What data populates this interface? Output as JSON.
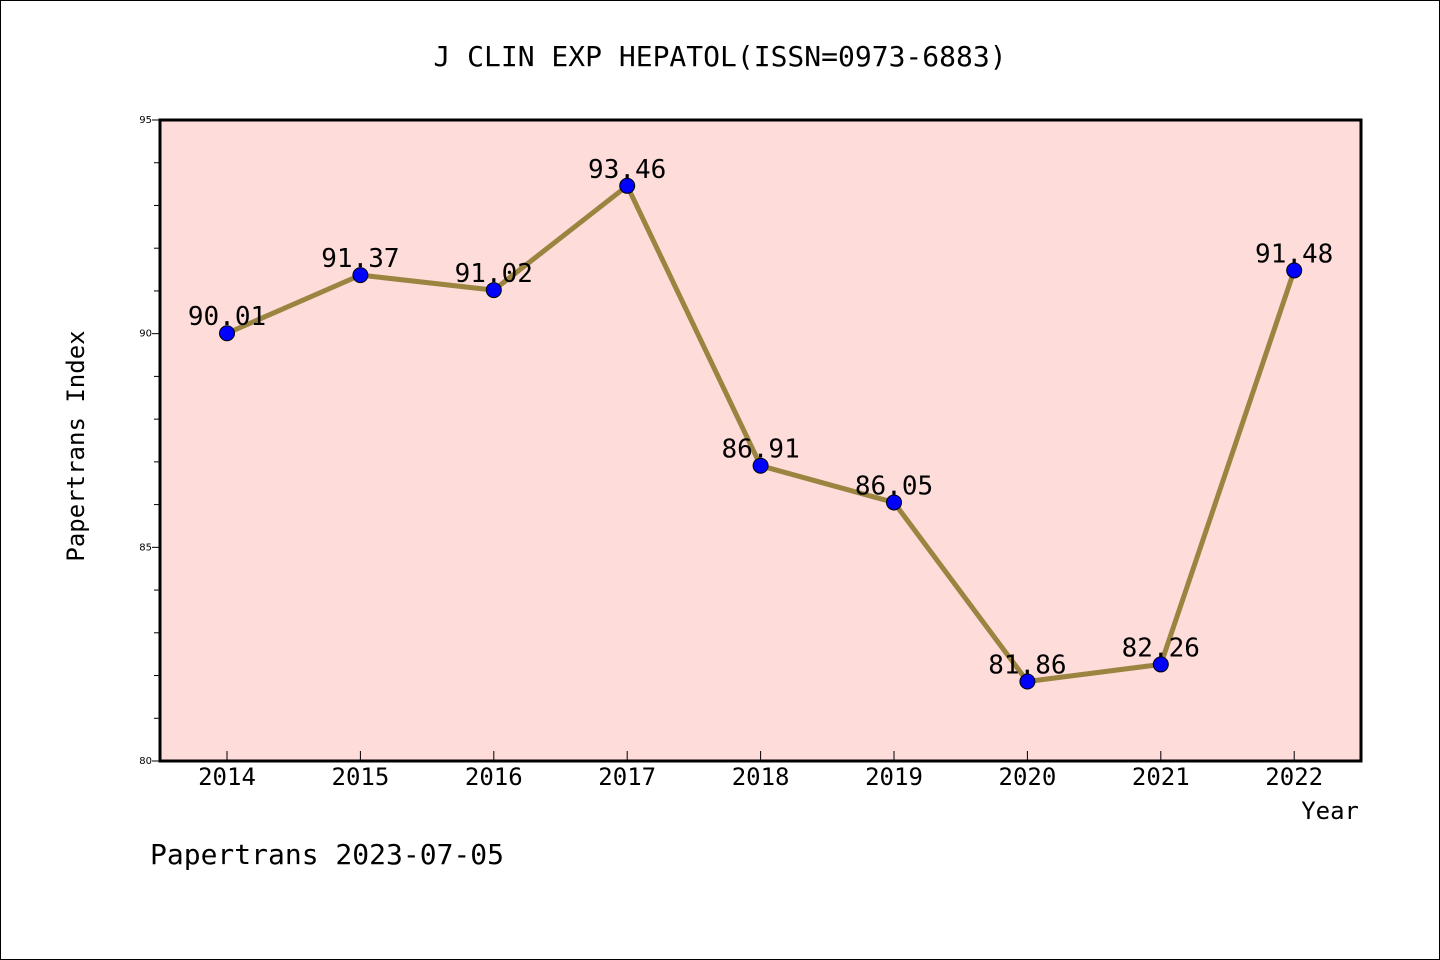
{
  "chart_data": {
    "type": "line",
    "title": "J CLIN EXP HEPATOL(ISSN=0973-6883)",
    "xlabel": "Year",
    "ylabel": "Papertrans Index",
    "categories": [
      "2014",
      "2015",
      "2016",
      "2017",
      "2018",
      "2019",
      "2020",
      "2021",
      "2022"
    ],
    "values": [
      90.01,
      91.37,
      91.02,
      93.46,
      86.91,
      86.05,
      81.86,
      82.26,
      91.48
    ],
    "data_labels": [
      "90.01",
      "91.37",
      "91.02",
      "93.46",
      "86.91",
      "86.05",
      "81.86",
      "82.26",
      "91.48"
    ],
    "ylim": [
      80,
      95
    ],
    "yticks": [
      "80",
      "85",
      "90",
      "95"
    ],
    "grid": false,
    "colors": {
      "plot_background": "#fddcda",
      "line": "#9b8440",
      "marker": "#0000ff"
    }
  },
  "footer": "Papertrans 2023-07-05"
}
